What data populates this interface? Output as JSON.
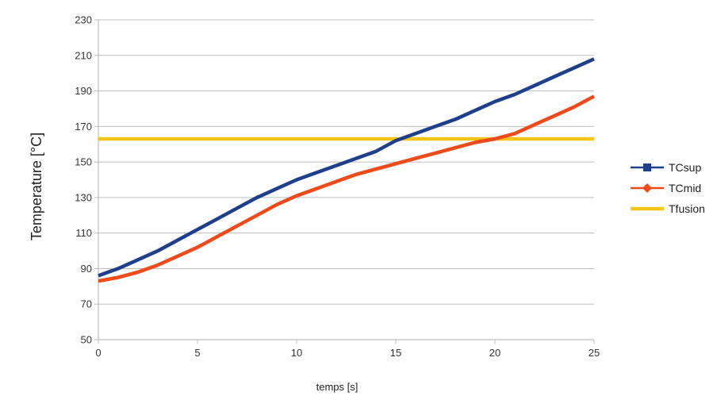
{
  "chart_data": {
    "type": "line",
    "xlabel": "temps [s]",
    "ylabel": "Temperature [°C]",
    "xlim": [
      0,
      25
    ],
    "ylim": [
      50,
      230
    ],
    "x_ticks": [
      0,
      5,
      10,
      15,
      20,
      25
    ],
    "y_ticks": [
      50,
      70,
      90,
      110,
      130,
      150,
      170,
      190,
      210,
      230
    ],
    "grid": "horizontal",
    "legend": "right",
    "series": [
      {
        "name": "TCsup",
        "color": "#1f3f8c",
        "marker": "square",
        "x": [
          0,
          1,
          2,
          3,
          4,
          5,
          6,
          7,
          8,
          9,
          10,
          11,
          12,
          13,
          14,
          15,
          16,
          17,
          18,
          19,
          20,
          21,
          22,
          23,
          24,
          25
        ],
        "y": [
          86,
          90,
          95,
          100,
          106,
          112,
          118,
          124,
          130,
          135,
          140,
          144,
          148,
          152,
          156,
          162,
          166,
          170,
          174,
          179,
          184,
          188,
          193,
          198,
          203,
          208
        ]
      },
      {
        "name": "TCmid",
        "color": "#ee4a1a",
        "marker": "diamond",
        "x": [
          0,
          1,
          2,
          3,
          4,
          5,
          6,
          7,
          8,
          9,
          10,
          11,
          12,
          13,
          14,
          15,
          16,
          17,
          18,
          19,
          20,
          21,
          22,
          23,
          24,
          25
        ],
        "y": [
          83,
          85,
          88,
          92,
          97,
          102,
          108,
          114,
          120,
          126,
          131,
          135,
          139,
          143,
          146,
          149,
          152,
          155,
          158,
          161,
          163,
          166,
          171,
          176,
          181,
          187
        ]
      },
      {
        "name": "Tfusion",
        "color": "#f5c518",
        "marker": "none",
        "x": [
          0,
          25
        ],
        "y": [
          163,
          163
        ]
      }
    ]
  }
}
